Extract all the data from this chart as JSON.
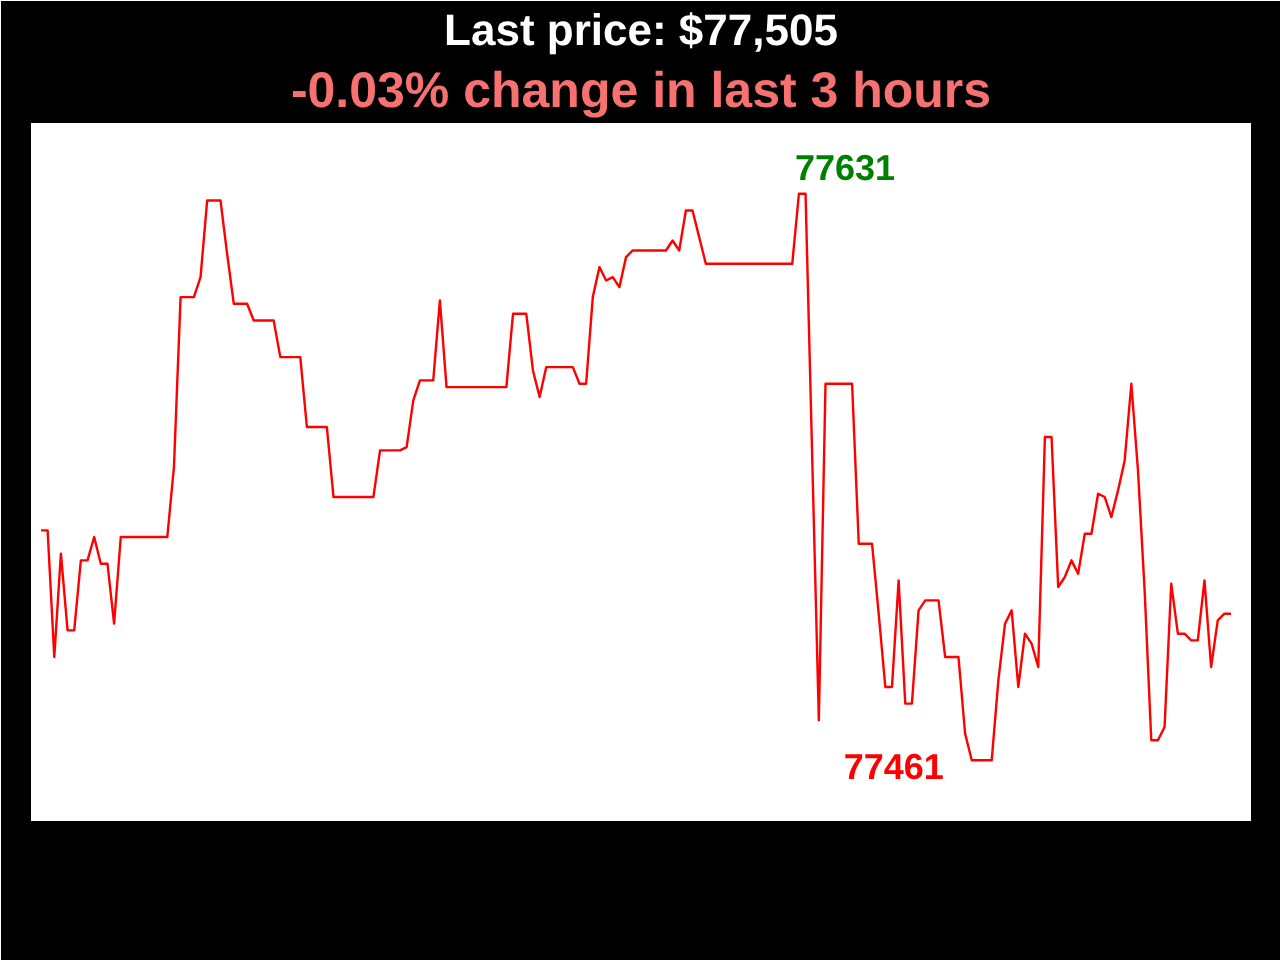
{
  "chart_data": {
    "type": "line",
    "title": "Last price: $77,505",
    "subtitle": "-0.03% change in last 3 hours",
    "categories": [
      null,
      null,
      null,
      null,
      null,
      null,
      null,
      null,
      null,
      null,
      null,
      null,
      null,
      null,
      null,
      null,
      null,
      null,
      null,
      null,
      null,
      null,
      null,
      null,
      null,
      null,
      null,
      null,
      null,
      null,
      null,
      null,
      null,
      null,
      null,
      null,
      null,
      null,
      null,
      null,
      null,
      null,
      null,
      null,
      null,
      null,
      null,
      null,
      null,
      null,
      null,
      null,
      null,
      null,
      null,
      null,
      null,
      null,
      null,
      null,
      null,
      null,
      null,
      null,
      null,
      null,
      null,
      null,
      null,
      null,
      null,
      null,
      null,
      null,
      null,
      null,
      null,
      null,
      null,
      null,
      null,
      null,
      null,
      null,
      null,
      null,
      null,
      null,
      null,
      null,
      null,
      null,
      null,
      null,
      null,
      null,
      null,
      null,
      null,
      null,
      null,
      null,
      null,
      null,
      null,
      null,
      null,
      null,
      null,
      null,
      null,
      null,
      null,
      null,
      null,
      null,
      null,
      null,
      null,
      null,
      null,
      null,
      null,
      null,
      null,
      null,
      null,
      null,
      null,
      null,
      null,
      null,
      null,
      null,
      null,
      null,
      null,
      null,
      null,
      null,
      null,
      null,
      null,
      null,
      null,
      null,
      null,
      null,
      null,
      null,
      null,
      null,
      null,
      null,
      null,
      null,
      null,
      null,
      null,
      null,
      null,
      null,
      null,
      null,
      null,
      null,
      null,
      null,
      null,
      null,
      null,
      null,
      null,
      null,
      null,
      null,
      null,
      null,
      null,
      null
    ],
    "color": "#ff0000",
    "values": [
      77530,
      77530,
      77492,
      77523,
      77500,
      77500,
      77521,
      77521,
      77528,
      77520,
      77520,
      77502,
      77528,
      77528,
      77528,
      77528,
      77528,
      77528,
      77528,
      77528,
      77549,
      77600,
      77600,
      77600,
      77606,
      77629,
      77629,
      77629,
      77613,
      77598,
      77598,
      77598,
      77593,
      77593,
      77593,
      77593,
      77582,
      77582,
      77582,
      77582,
      77561,
      77561,
      77561,
      77561,
      77540,
      77540,
      77540,
      77540,
      77540,
      77540,
      77540,
      77554,
      77554,
      77554,
      77554,
      77555,
      77569,
      77575,
      77575,
      77575,
      77599,
      77573,
      77573,
      77573,
      77573,
      77573,
      77573,
      77573,
      77573,
      77573,
      77573,
      77595,
      77595,
      77595,
      77578,
      77570,
      77579,
      77579,
      77579,
      77579,
      77579,
      77574,
      77574,
      77600,
      77609,
      77605,
      77606,
      77603,
      77612,
      77614,
      77614,
      77614,
      77614,
      77614,
      77614,
      77617,
      77614,
      77626,
      77626,
      77618,
      77610,
      77610,
      77610,
      77610,
      77610,
      77610,
      77610,
      77610,
      77610,
      77610,
      77610,
      77610,
      77610,
      77610,
      77631,
      77631,
      77552,
      77473,
      77574,
      77574,
      77574,
      77574,
      77574,
      77526,
      77526,
      77526,
      77505,
      77483,
      77483,
      77515,
      77478,
      77478,
      77506,
      77509,
      77509,
      77509,
      77492,
      77492,
      77492,
      77469,
      77461,
      77461,
      77461,
      77461,
      77485,
      77502,
      77506,
      77483,
      77499,
      77496,
      77489,
      77558,
      77558,
      77513,
      77516,
      77521,
      77517,
      77529,
      77529,
      77541,
      77540,
      77534,
      77542,
      77551,
      77574,
      77548,
      77512,
      77467,
      77467,
      77471,
      77514,
      77499,
      77499,
      77497,
      77497,
      77515,
      77489,
      77503,
      77505,
      77505
    ],
    "value_labels": [
      null,
      null,
      null,
      null,
      null,
      null,
      null,
      null,
      null,
      null,
      null,
      null,
      null,
      null,
      null,
      null,
      null,
      null,
      null,
      null,
      null,
      null,
      null,
      null,
      null,
      null,
      null,
      null,
      null,
      null,
      null,
      null,
      null,
      null,
      null,
      null,
      null,
      null,
      null,
      null,
      null,
      null,
      null,
      null,
      null,
      null,
      null,
      null,
      null,
      null,
      null,
      null,
      null,
      null,
      null,
      null,
      null,
      null,
      null,
      null,
      null,
      null,
      null,
      null,
      null,
      null,
      null,
      null,
      null,
      null,
      null,
      null,
      null,
      null,
      null,
      null,
      null,
      null,
      null,
      null,
      null,
      null,
      null,
      null,
      null,
      null,
      null,
      null,
      null,
      null,
      null,
      null,
      null,
      null,
      null,
      null,
      null,
      null,
      null,
      null,
      null,
      null,
      null,
      null,
      null,
      null,
      null,
      null,
      null,
      null,
      null,
      null,
      null,
      null,
      "77631",
      null,
      null,
      null,
      null,
      null,
      null,
      null,
      null,
      null,
      null,
      null,
      null,
      null,
      null,
      null,
      null,
      null,
      null,
      null,
      null,
      null,
      null,
      null,
      null,
      null,
      "77461",
      null,
      null,
      null,
      null,
      null,
      null,
      null,
      null,
      null,
      null,
      null,
      null,
      null,
      null,
      null,
      null,
      null,
      null,
      null,
      null,
      null,
      null,
      null,
      null,
      null,
      null,
      null,
      null,
      null,
      null,
      null,
      null,
      null,
      null,
      null,
      null,
      null,
      null,
      null
    ]
  }
}
